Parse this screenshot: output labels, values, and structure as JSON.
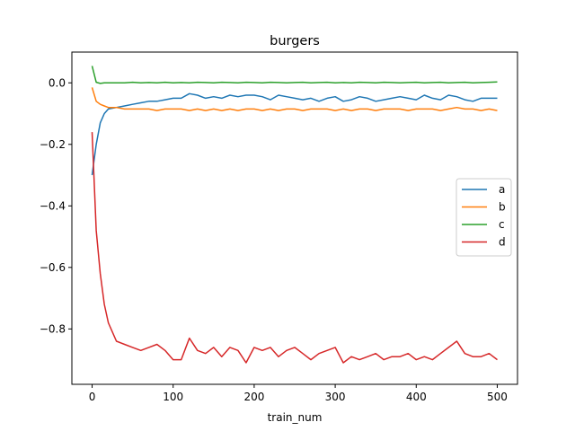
{
  "chart_data": {
    "type": "line",
    "title": "burgers",
    "xlabel": "train_num",
    "ylabel": "",
    "xlim": [
      -25,
      525
    ],
    "ylim": [
      -0.98,
      0.1
    ],
    "xticks": [
      0,
      100,
      200,
      300,
      400,
      500
    ],
    "yticks": [
      0.0,
      -0.2,
      -0.4,
      -0.6,
      -0.8
    ],
    "ytick_labels": [
      "0.0",
      "−0.2",
      "−0.4",
      "−0.6",
      "−0.8"
    ],
    "legend_position": "center-right",
    "grid": false,
    "x": [
      0,
      5,
      10,
      15,
      20,
      30,
      40,
      50,
      60,
      70,
      80,
      90,
      100,
      110,
      120,
      130,
      140,
      150,
      160,
      170,
      180,
      190,
      200,
      210,
      220,
      230,
      240,
      250,
      260,
      270,
      280,
      290,
      300,
      310,
      320,
      330,
      340,
      350,
      360,
      370,
      380,
      390,
      400,
      410,
      420,
      430,
      440,
      450,
      460,
      470,
      480,
      490,
      500
    ],
    "series": [
      {
        "name": "a",
        "color": "#1f77b4",
        "values": [
          -0.3,
          -0.2,
          -0.13,
          -0.1,
          -0.085,
          -0.08,
          -0.075,
          -0.07,
          -0.065,
          -0.06,
          -0.06,
          -0.055,
          -0.05,
          -0.05,
          -0.035,
          -0.04,
          -0.05,
          -0.045,
          -0.05,
          -0.04,
          -0.045,
          -0.04,
          -0.04,
          -0.045,
          -0.055,
          -0.04,
          -0.045,
          -0.05,
          -0.055,
          -0.05,
          -0.06,
          -0.05,
          -0.045,
          -0.06,
          -0.055,
          -0.045,
          -0.05,
          -0.06,
          -0.055,
          -0.05,
          -0.045,
          -0.05,
          -0.055,
          -0.04,
          -0.05,
          -0.055,
          -0.04,
          -0.045,
          -0.055,
          -0.06,
          -0.05,
          -0.05,
          -0.05
        ]
      },
      {
        "name": "b",
        "color": "#ff7f0e",
        "values": [
          -0.015,
          -0.06,
          -0.07,
          -0.075,
          -0.08,
          -0.08,
          -0.085,
          -0.085,
          -0.085,
          -0.085,
          -0.09,
          -0.085,
          -0.085,
          -0.085,
          -0.09,
          -0.085,
          -0.09,
          -0.085,
          -0.09,
          -0.085,
          -0.09,
          -0.085,
          -0.085,
          -0.09,
          -0.085,
          -0.09,
          -0.085,
          -0.085,
          -0.09,
          -0.085,
          -0.085,
          -0.085,
          -0.09,
          -0.085,
          -0.09,
          -0.085,
          -0.085,
          -0.09,
          -0.085,
          -0.085,
          -0.085,
          -0.09,
          -0.085,
          -0.085,
          -0.085,
          -0.09,
          -0.085,
          -0.08,
          -0.085,
          -0.085,
          -0.09,
          -0.085,
          -0.09
        ]
      },
      {
        "name": "c",
        "color": "#2ca02c",
        "values": [
          0.055,
          0.002,
          -0.002,
          0.0,
          0.0,
          0.0,
          0.0,
          0.002,
          0.0,
          0.001,
          0.0,
          0.002,
          0.0,
          0.001,
          0.0,
          0.002,
          0.001,
          0.0,
          0.002,
          0.001,
          0.0,
          0.002,
          0.001,
          0.0,
          0.002,
          0.001,
          0.0,
          0.001,
          0.002,
          0.0,
          0.001,
          0.002,
          0.0,
          0.001,
          0.0,
          0.002,
          0.001,
          0.0,
          0.002,
          0.001,
          0.0,
          0.001,
          0.002,
          0.0,
          0.001,
          0.002,
          0.0,
          0.001,
          0.002,
          0.0,
          0.001,
          0.002,
          0.003
        ]
      },
      {
        "name": "d",
        "color": "#d62728",
        "values": [
          -0.16,
          -0.48,
          -0.62,
          -0.72,
          -0.78,
          -0.84,
          -0.85,
          -0.86,
          -0.87,
          -0.86,
          -0.85,
          -0.87,
          -0.9,
          -0.9,
          -0.83,
          -0.87,
          -0.88,
          -0.86,
          -0.89,
          -0.86,
          -0.87,
          -0.91,
          -0.86,
          -0.87,
          -0.86,
          -0.89,
          -0.87,
          -0.86,
          -0.88,
          -0.9,
          -0.88,
          -0.87,
          -0.86,
          -0.91,
          -0.89,
          -0.9,
          -0.89,
          -0.88,
          -0.9,
          -0.89,
          -0.89,
          -0.88,
          -0.9,
          -0.89,
          -0.9,
          -0.88,
          -0.86,
          -0.84,
          -0.88,
          -0.89,
          -0.89,
          -0.88,
          -0.9
        ]
      }
    ]
  }
}
